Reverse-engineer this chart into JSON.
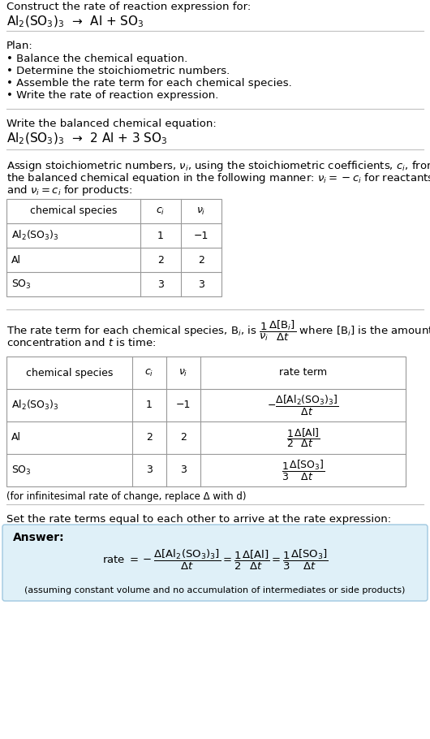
{
  "title_line1": "Construct the rate of reaction expression for:",
  "title_line2": "Al$_2$(SO$_3$)$_3$  →  Al + SO$_3$",
  "plan_header": "Plan:",
  "plan_items": [
    "• Balance the chemical equation.",
    "• Determine the stoichiometric numbers.",
    "• Assemble the rate term for each chemical species.",
    "• Write the rate of reaction expression."
  ],
  "balanced_header": "Write the balanced chemical equation:",
  "balanced_eq": "Al$_2$(SO$_3$)$_3$  →  2 Al + 3 SO$_3$",
  "stoich_intro_lines": [
    "Assign stoichiometric numbers, $\\nu_i$, using the stoichiometric coefficients, $c_i$, from",
    "the balanced chemical equation in the following manner: $\\nu_i = -c_i$ for reactants",
    "and $\\nu_i = c_i$ for products:"
  ],
  "table1_headers": [
    "chemical species",
    "$c_i$",
    "$\\nu_i$"
  ],
  "table1_rows": [
    [
      "Al$_2$(SO$_3$)$_3$",
      "1",
      "−1"
    ],
    [
      "Al",
      "2",
      "2"
    ],
    [
      "SO$_3$",
      "3",
      "3"
    ]
  ],
  "rate_intro_lines": [
    "The rate term for each chemical species, B$_i$, is $\\dfrac{1}{\\nu_i}\\dfrac{\\Delta[\\mathrm{B}_i]}{\\Delta t}$ where [B$_i$] is the amount",
    "concentration and $t$ is time:"
  ],
  "table2_headers": [
    "chemical species",
    "$c_i$",
    "$\\nu_i$",
    "rate term"
  ],
  "table2_rows": [
    [
      "Al$_2$(SO$_3$)$_3$",
      "1",
      "−1"
    ],
    [
      "Al",
      "2",
      "2"
    ],
    [
      "SO$_3$",
      "3",
      "3"
    ]
  ],
  "rate_terms": [
    "$-\\dfrac{\\Delta[\\mathrm{Al_2(SO_3)_3}]}{\\Delta t}$",
    "$\\dfrac{1}{2}\\dfrac{\\Delta[\\mathrm{Al}]}{\\Delta t}$",
    "$\\dfrac{1}{3}\\dfrac{\\Delta[\\mathrm{SO_3}]}{\\Delta t}$"
  ],
  "infinitesimal_note": "(for infinitesimal rate of change, replace Δ with d)",
  "set_equal_text": "Set the rate terms equal to each other to arrive at the rate expression:",
  "answer_label": "Answer:",
  "answer_note": "(assuming constant volume and no accumulation of intermediates or side products)",
  "bg_color": "#ffffff",
  "answer_box_color": "#dff0f8",
  "answer_box_border": "#a0c8e0",
  "text_color": "#000000",
  "separator_color": "#c0c0c0",
  "table_border_color": "#999999"
}
